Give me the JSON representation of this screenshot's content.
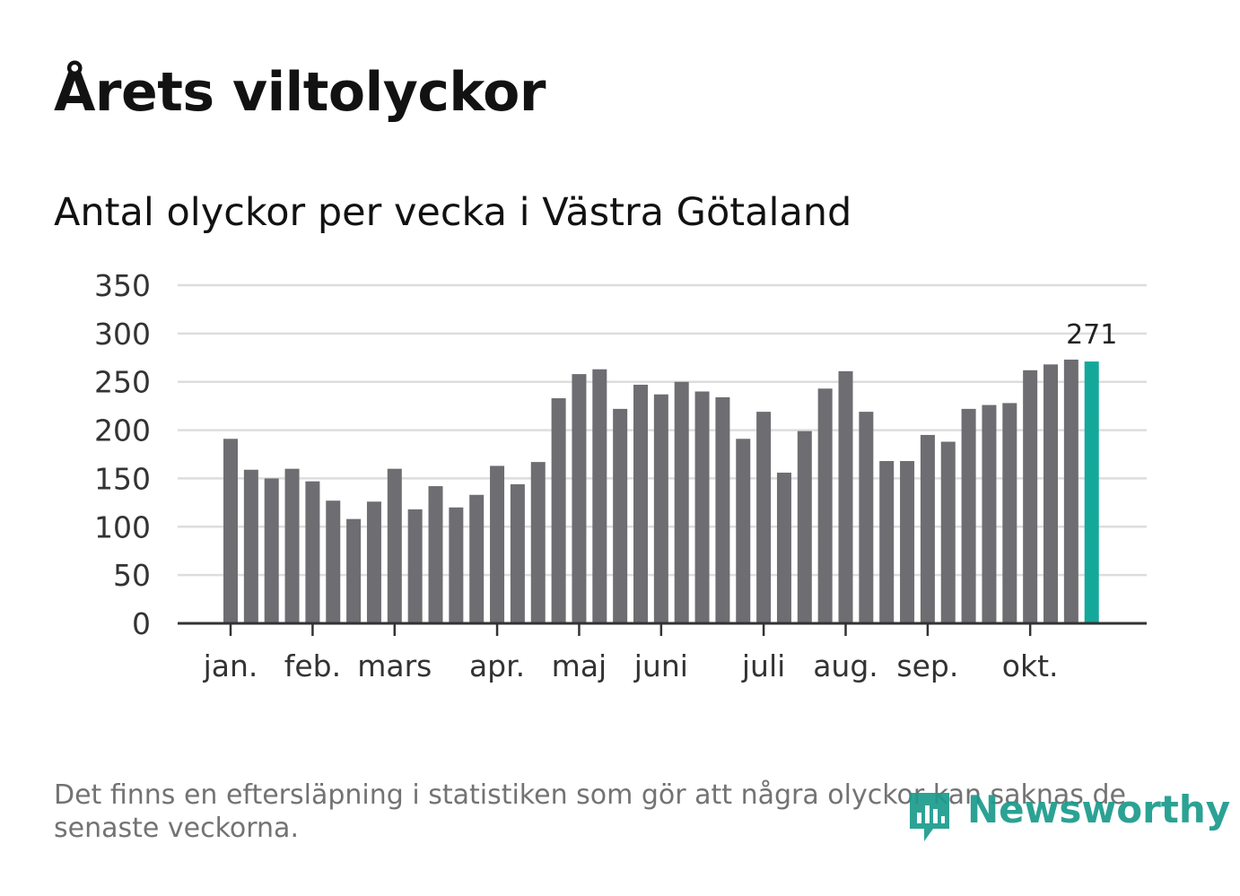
{
  "title": "Årets viltolyckor",
  "subtitle": "Antal olyckor per vecka i Västra Götaland",
  "footnote": "Det finns en eftersläpning i statistiken som gör att några olyckor kan saknas de senaste veckorna.",
  "brand": {
    "name": "Newsworthy",
    "color": "#1a9b8c"
  },
  "colors": {
    "bar": "#6e6d72",
    "highlight": "#14a89a",
    "grid": "#dddddd",
    "axis": "#333333",
    "text": "#333333"
  },
  "chart_data": {
    "type": "bar",
    "title": "Antal olyckor per vecka i Västra Götaland",
    "xlabel": "",
    "ylabel": "",
    "ylim": [
      0,
      350
    ],
    "yticks": [
      0,
      50,
      100,
      150,
      200,
      250,
      300,
      350
    ],
    "grid": true,
    "month_ticks": [
      {
        "label": "jan.",
        "bar_index": 0
      },
      {
        "label": "feb.",
        "bar_index": 4
      },
      {
        "label": "mars",
        "bar_index": 8
      },
      {
        "label": "apr.",
        "bar_index": 13
      },
      {
        "label": "maj",
        "bar_index": 17
      },
      {
        "label": "juni",
        "bar_index": 21
      },
      {
        "label": "juli",
        "bar_index": 26
      },
      {
        "label": "aug.",
        "bar_index": 30
      },
      {
        "label": "sep.",
        "bar_index": 34
      },
      {
        "label": "okt.",
        "bar_index": 39
      }
    ],
    "values": [
      191,
      159,
      150,
      160,
      147,
      127,
      108,
      126,
      160,
      118,
      142,
      120,
      133,
      163,
      144,
      167,
      233,
      258,
      263,
      222,
      247,
      237,
      250,
      240,
      234,
      191,
      219,
      156,
      199,
      243,
      261,
      219,
      168,
      168,
      195,
      188,
      222,
      226,
      228,
      262,
      268,
      273,
      271
    ],
    "highlight_index": 42,
    "highlight_label": "271"
  }
}
